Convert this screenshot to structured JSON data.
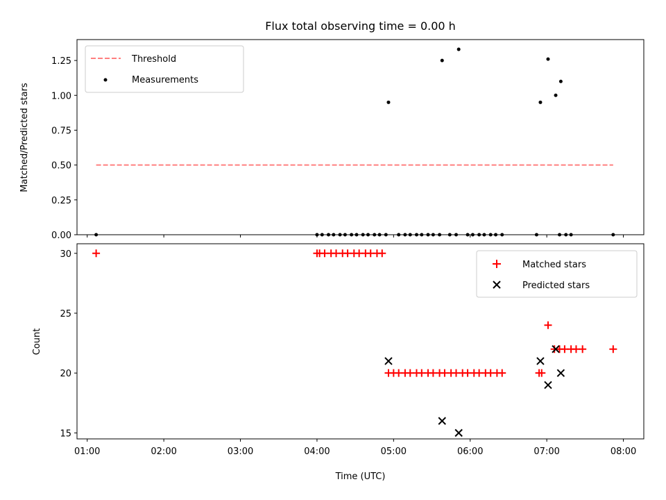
{
  "title": "Flux total observing time = 0.00 h",
  "chart_data": [
    {
      "type": "scatter",
      "ylabel": "Matched/Predicted stars",
      "xlabel": "",
      "xlim": [
        "00:52",
        "08:16"
      ],
      "ylim": [
        0,
        1.4
      ],
      "yticks": [
        0.0,
        0.25,
        0.5,
        0.75,
        1.0,
        1.25
      ],
      "ytick_labels": [
        "0.00",
        "0.25",
        "0.50",
        "0.75",
        "1.00",
        "1.25"
      ],
      "legend": {
        "placement": "upper-left",
        "entries": [
          "Threshold",
          "Measurements"
        ]
      },
      "series": [
        {
          "name": "Threshold",
          "kind": "dashed-line",
          "color": "#ff7f7f",
          "x": [
            "01:07",
            "07:52"
          ],
          "y": [
            0.5,
            0.5
          ]
        },
        {
          "name": "Measurements",
          "kind": "dot",
          "color": "#000000",
          "x": [
            "01:07",
            "04:00",
            "04:04",
            "04:09",
            "04:13",
            "04:18",
            "04:22",
            "04:27",
            "04:31",
            "04:36",
            "04:40",
            "04:45",
            "04:49",
            "04:54",
            "05:04",
            "05:09",
            "05:13",
            "05:18",
            "05:22",
            "05:27",
            "05:31",
            "05:36",
            "05:44",
            "05:49",
            "05:58",
            "06:02",
            "06:07",
            "06:11",
            "06:16",
            "06:20",
            "06:25",
            "06:52",
            "07:10",
            "07:15",
            "07:19",
            "07:52",
            "04:56",
            "05:38",
            "05:51",
            "06:55",
            "07:01",
            "07:07",
            "07:11"
          ],
          "y": [
            0,
            0,
            0,
            0,
            0,
            0,
            0,
            0,
            0,
            0,
            0,
            0,
            0,
            0,
            0,
            0,
            0,
            0,
            0,
            0,
            0,
            0,
            0,
            0,
            0,
            0,
            0,
            0,
            0,
            0,
            0,
            0,
            0,
            0,
            0,
            0,
            0.95,
            1.25,
            1.33,
            0.95,
            1.26,
            1.0,
            1.1
          ]
        }
      ]
    },
    {
      "type": "scatter",
      "ylabel": "Count",
      "xlabel": "Time (UTC)",
      "xlim": [
        "00:52",
        "08:16"
      ],
      "ylim": [
        14.5,
        30.8
      ],
      "yticks": [
        15,
        20,
        25,
        30
      ],
      "ytick_labels": [
        "15",
        "20",
        "25",
        "30"
      ],
      "xticks": [
        "01:00",
        "02:00",
        "03:00",
        "04:00",
        "05:00",
        "06:00",
        "07:00",
        "08:00"
      ],
      "legend": {
        "placement": "upper-right",
        "entries": [
          "Matched stars",
          "Predicted stars"
        ]
      },
      "series": [
        {
          "name": "Matched stars",
          "kind": "plus",
          "color": "#ff0000",
          "x": [
            "01:07",
            "04:00",
            "04:02",
            "04:06",
            "04:11",
            "04:15",
            "04:20",
            "04:24",
            "04:29",
            "04:33",
            "04:38",
            "04:42",
            "04:47",
            "04:51",
            "04:56",
            "05:00",
            "05:04",
            "05:09",
            "05:13",
            "05:18",
            "05:22",
            "05:27",
            "05:31",
            "05:36",
            "05:40",
            "05:45",
            "05:49",
            "05:54",
            "05:58",
            "06:03",
            "06:07",
            "06:12",
            "06:16",
            "06:21",
            "06:25",
            "06:54",
            "06:56",
            "07:01",
            "07:06",
            "07:10",
            "07:14",
            "07:19",
            "07:23",
            "07:28",
            "07:52"
          ],
          "y": [
            30,
            30,
            30,
            30,
            30,
            30,
            30,
            30,
            30,
            30,
            30,
            30,
            30,
            30,
            20,
            20,
            20,
            20,
            20,
            20,
            20,
            20,
            20,
            20,
            20,
            20,
            20,
            20,
            20,
            20,
            20,
            20,
            20,
            20,
            20,
            20,
            20,
            24,
            22,
            22,
            22,
            22,
            22,
            22,
            22
          ]
        },
        {
          "name": "Predicted stars",
          "kind": "x",
          "color": "#000000",
          "x": [
            "04:56",
            "05:38",
            "05:51",
            "06:55",
            "07:01",
            "07:07",
            "07:11"
          ],
          "y": [
            21,
            16,
            15,
            21,
            19,
            22,
            20
          ]
        }
      ]
    }
  ]
}
